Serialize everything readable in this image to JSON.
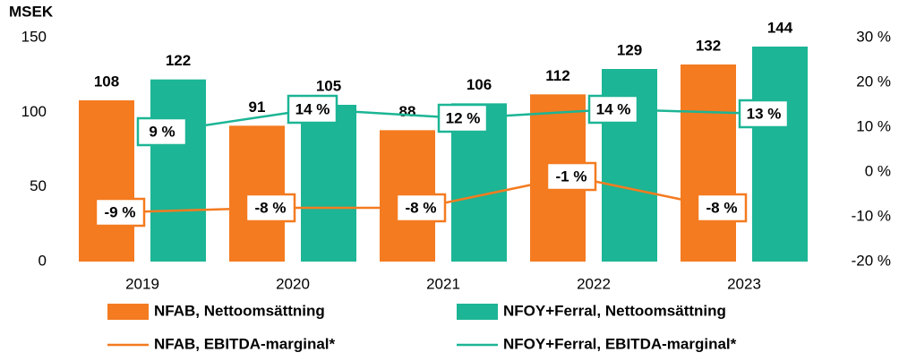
{
  "chart_data": {
    "type": "bar",
    "y_label": "MSEK",
    "categories": [
      "2019",
      "2020",
      "2021",
      "2022",
      "2023"
    ],
    "ylim": [
      0,
      150
    ],
    "yticks": [
      0,
      50,
      100,
      150
    ],
    "y2lim": [
      -20,
      30
    ],
    "y2ticks": [
      {
        "value": -20,
        "label": "-20 %"
      },
      {
        "value": -10,
        "label": "-10 %"
      },
      {
        "value": 0,
        "label": "0 %"
      },
      {
        "value": 10,
        "label": "10 %"
      },
      {
        "value": 20,
        "label": "20 %"
      },
      {
        "value": 30,
        "label": "30 %"
      }
    ],
    "series": [
      {
        "name": "NFAB, Nettoomsättning",
        "type": "bar",
        "color": "#f47b20",
        "values": [
          108,
          91,
          88,
          112,
          132
        ]
      },
      {
        "name": "NFOY+Ferral, Nettoomsättning",
        "type": "bar",
        "color": "#1cb595",
        "values": [
          122,
          105,
          106,
          129,
          144
        ]
      },
      {
        "name": "NFAB, EBITDA-marginal*",
        "type": "line",
        "axis": "y2",
        "color": "#f47b20",
        "values": [
          -9,
          -8,
          -8,
          -1,
          -8
        ],
        "value_labels": [
          "-9 %",
          "-8 %",
          "-8 %",
          "-1 %",
          "-8 %"
        ]
      },
      {
        "name": "NFOY+Ferral, EBITDA-marginal*",
        "type": "line",
        "axis": "y2",
        "color": "#1cb595",
        "values": [
          9,
          14,
          12,
          14,
          13
        ],
        "value_labels": [
          "9 %",
          "14 %",
          "12 %",
          "14 %",
          "13 %"
        ]
      }
    ]
  }
}
